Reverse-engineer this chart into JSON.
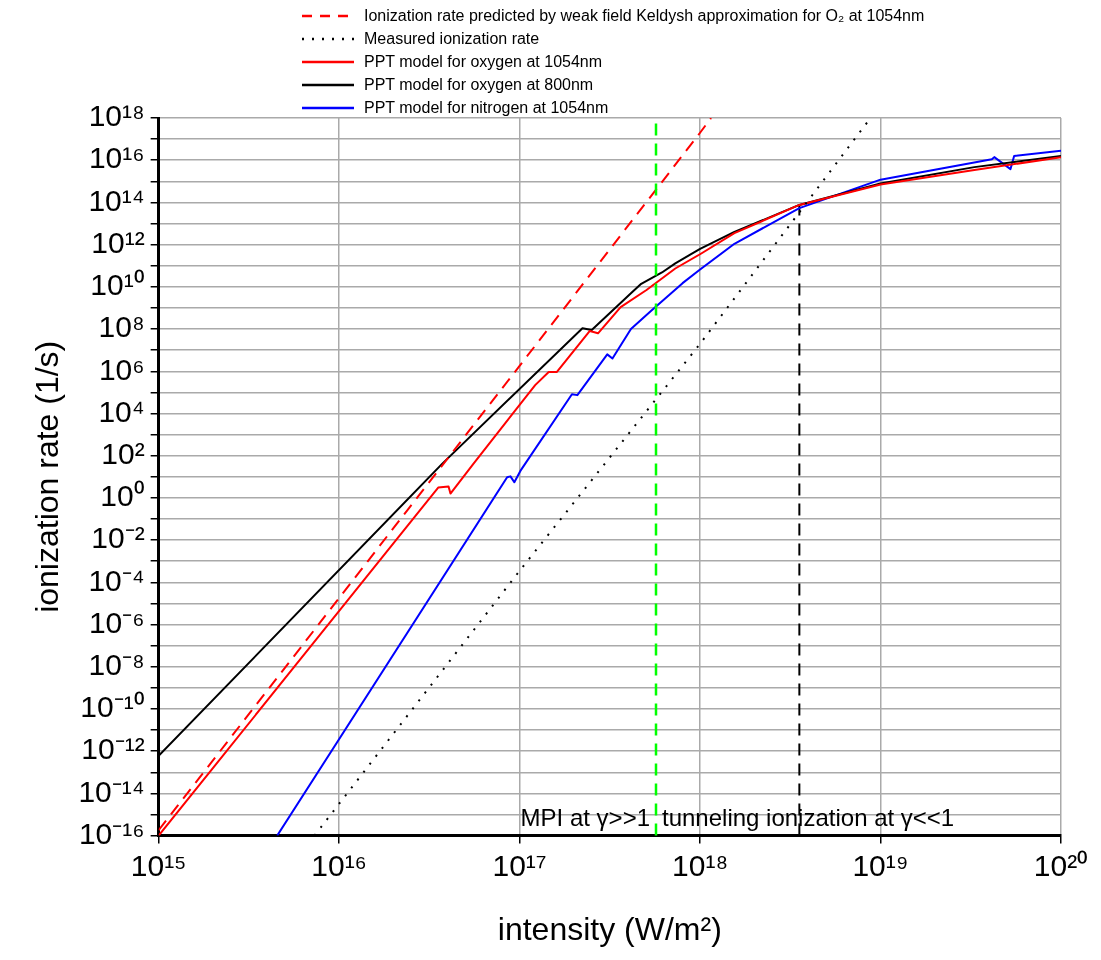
{
  "chart_data": {
    "type": "line",
    "xlabel": "intensity (W/m²)",
    "ylabel": "ionization rate (1/s)",
    "log": "xy",
    "grid": true,
    "legend": "top left",
    "marker": "none",
    "xlim": [
      1000000000000000.0,
      1e+20
    ],
    "xticks": [
      {
        "value": 1000000000000000.0,
        "label": "10¹⁵"
      },
      {
        "value": 1e+16,
        "label": "10¹⁶"
      },
      {
        "value": 1e+17,
        "label": "10¹⁷"
      },
      {
        "value": 1e+18,
        "label": "10¹⁸"
      },
      {
        "value": 1e+19,
        "label": "10¹⁹"
      },
      {
        "value": 1e+20,
        "label": "10²⁰"
      }
    ],
    "ylim": [
      1e-16,
      1e+18
    ],
    "yticks": [
      {
        "value": 1e-16,
        "label": "10⁻¹⁶"
      },
      {
        "value": 1e-15,
        "label": null
      },
      {
        "value": 1e-14,
        "label": "10⁻¹⁴"
      },
      {
        "value": 1e-13,
        "label": null
      },
      {
        "value": 1e-12,
        "label": "10⁻¹²"
      },
      {
        "value": 1e-11,
        "label": null
      },
      {
        "value": 1e-10,
        "label": "10⁻¹⁰"
      },
      {
        "value": 1e-09,
        "label": null
      },
      {
        "value": 1e-08,
        "label": "10⁻⁸"
      },
      {
        "value": 1e-07,
        "label": null
      },
      {
        "value": 1e-06,
        "label": "10⁻⁶"
      },
      {
        "value": 1e-05,
        "label": null
      },
      {
        "value": 0.0001,
        "label": "10⁻⁴"
      },
      {
        "value": 0.001,
        "label": null
      },
      {
        "value": 0.01,
        "label": "10⁻²"
      },
      {
        "value": 0.1,
        "label": null
      },
      {
        "value": 1,
        "label": "10⁰"
      },
      {
        "value": 10,
        "label": null
      },
      {
        "value": 100,
        "label": "10²"
      },
      {
        "value": 1000.0,
        "label": null
      },
      {
        "value": 10000.0,
        "label": "10⁴"
      },
      {
        "value": 100000.0,
        "label": null
      },
      {
        "value": 1000000.0,
        "label": "10⁶"
      },
      {
        "value": 10000000.0,
        "label": null
      },
      {
        "value": 100000000.0,
        "label": "10⁸"
      },
      {
        "value": 1000000000.0,
        "label": null
      },
      {
        "value": 10000000000.0,
        "label": "10¹⁰"
      },
      {
        "value": 100000000000.0,
        "label": null
      },
      {
        "value": 1000000000000.0,
        "label": "10¹²"
      },
      {
        "value": 10000000000000.0,
        "label": null
      },
      {
        "value": 100000000000000.0,
        "label": "10¹⁴"
      },
      {
        "value": 1000000000000000.0,
        "label": null
      },
      {
        "value": 1e+16,
        "label": "10¹⁶"
      },
      {
        "value": 1e+17,
        "label": null
      },
      {
        "value": 1e+18,
        "label": "10¹⁸"
      }
    ],
    "series": [
      {
        "name": "Ionization rate predicted by weak field Keldysh approximation for O₂ at 1054nm",
        "color": "#ff0000",
        "line_style": "dashed",
        "x": [
          1000000000000000.0,
          1e+16,
          1e+17,
          1e+18,
          1.15e+18
        ],
        "values": [
          1.8e-16,
          1.8e-05,
          1800000.0,
          2e+17,
          1e+18
        ]
      },
      {
        "name": "Measured ionization rate",
        "color": "#000000",
        "line_style": "dotted",
        "x": [
          7300000000000000.0,
          1e+17,
          1e+18,
          8.8e+18
        ],
        "values": [
          1e-16,
          0.00035,
          20000000.0,
          1e+18
        ]
      },
      {
        "name": "PPT model for oxygen at 1054nm",
        "color": "#ff0000",
        "line_style": "solid",
        "x": [
          1000000000000000.0,
          1.04e+16,
          3.54e+16,
          4.04e+16,
          4.14e+16,
          5.53e+16,
          1.22e+17,
          1.45e+17,
          1.61e+17,
          2.45e+17,
          2.72e+17,
          3.63e+17,
          5.05e+17,
          7.29e+17,
          1e+18,
          1.55e+18,
          3.55e+18,
          1e+19,
          3.31e+19,
          1e+20
        ],
        "values": [
          1e-16,
          6.6e-06,
          3.1,
          3.5,
          1.6,
          40,
          220000.0,
          930000.0,
          930000.0,
          81000000.0,
          63000000.0,
          1100000000.0,
          7100000000.0,
          74000000000.0,
          350000000000.0,
          3500000000000.0,
          76000000000000.0,
          700000000000000.0,
          3400000000000000.0,
          1.4e+16
        ]
      },
      {
        "name": "PPT model for oxygen at 800nm",
        "color": "#000000",
        "line_style": "solid",
        "x": [
          1000000000000000.0,
          3.72e+16,
          2.23e+17,
          2.51e+17,
          4.14e+17,
          4.72e+17,
          6.15e+17,
          7.29e+17,
          1e+18,
          1.55e+18,
          3.55e+18,
          1e+19,
          3.31e+19,
          1e+20
        ],
        "values": [
          6e-13,
          41,
          110000000.0,
          91000000.0,
          5000000000.0,
          14000000000.0,
          48000000000.0,
          130000000000.0,
          630000000000.0,
          4000000000000.0,
          76000000000000.0,
          790000000000000.0,
          4700000000000000.0,
          1.6e+16
        ]
      },
      {
        "name": "PPT model for nitrogen at 1054nm",
        "color": "#0000ff",
        "line_style": "solid",
        "x": [
          4540000000000000.0,
          8.53e+16,
          8.9e+16,
          9.35e+16,
          1.01e+17,
          1.95e+17,
          2.09e+17,
          3.06e+17,
          3.27e+17,
          4.14e+17,
          5.38e+17,
          8e+17,
          1e+18,
          1.55e+18,
          3.55e+18,
          1e+19,
          4.14e+19,
          4.27e+19,
          5.25e+19,
          5.5e+19,
          1e+20
        ],
        "values": [
          1e-16,
          9.5,
          10.5,
          5.5,
          19,
          81000.0,
          74000.0,
          6300000.0,
          4000000.0,
          100000000.0,
          760000000.0,
          15000000000.0,
          66000000000.0,
          1100000000000.0,
          54000000000000.0,
          1200000000000000.0,
          1.1e+16,
          1.4e+16,
          3800000000000000.0,
          1.6e+16,
          2.8e+16
        ]
      },
      {
        "color": "#000000",
        "line_style": "dashed",
        "x": [
          3.55e+18,
          3.55e+18
        ],
        "values": [
          1e-16,
          76000000000000.0
        ]
      }
    ],
    "ref_lines": [
      {
        "axis": "x",
        "value": 5.7e+17,
        "color": "#00ff00",
        "line_style": "dashed"
      }
    ],
    "annotations": [
      "MPI at γ>>1",
      "tunneling ionization at γ<<1"
    ]
  }
}
